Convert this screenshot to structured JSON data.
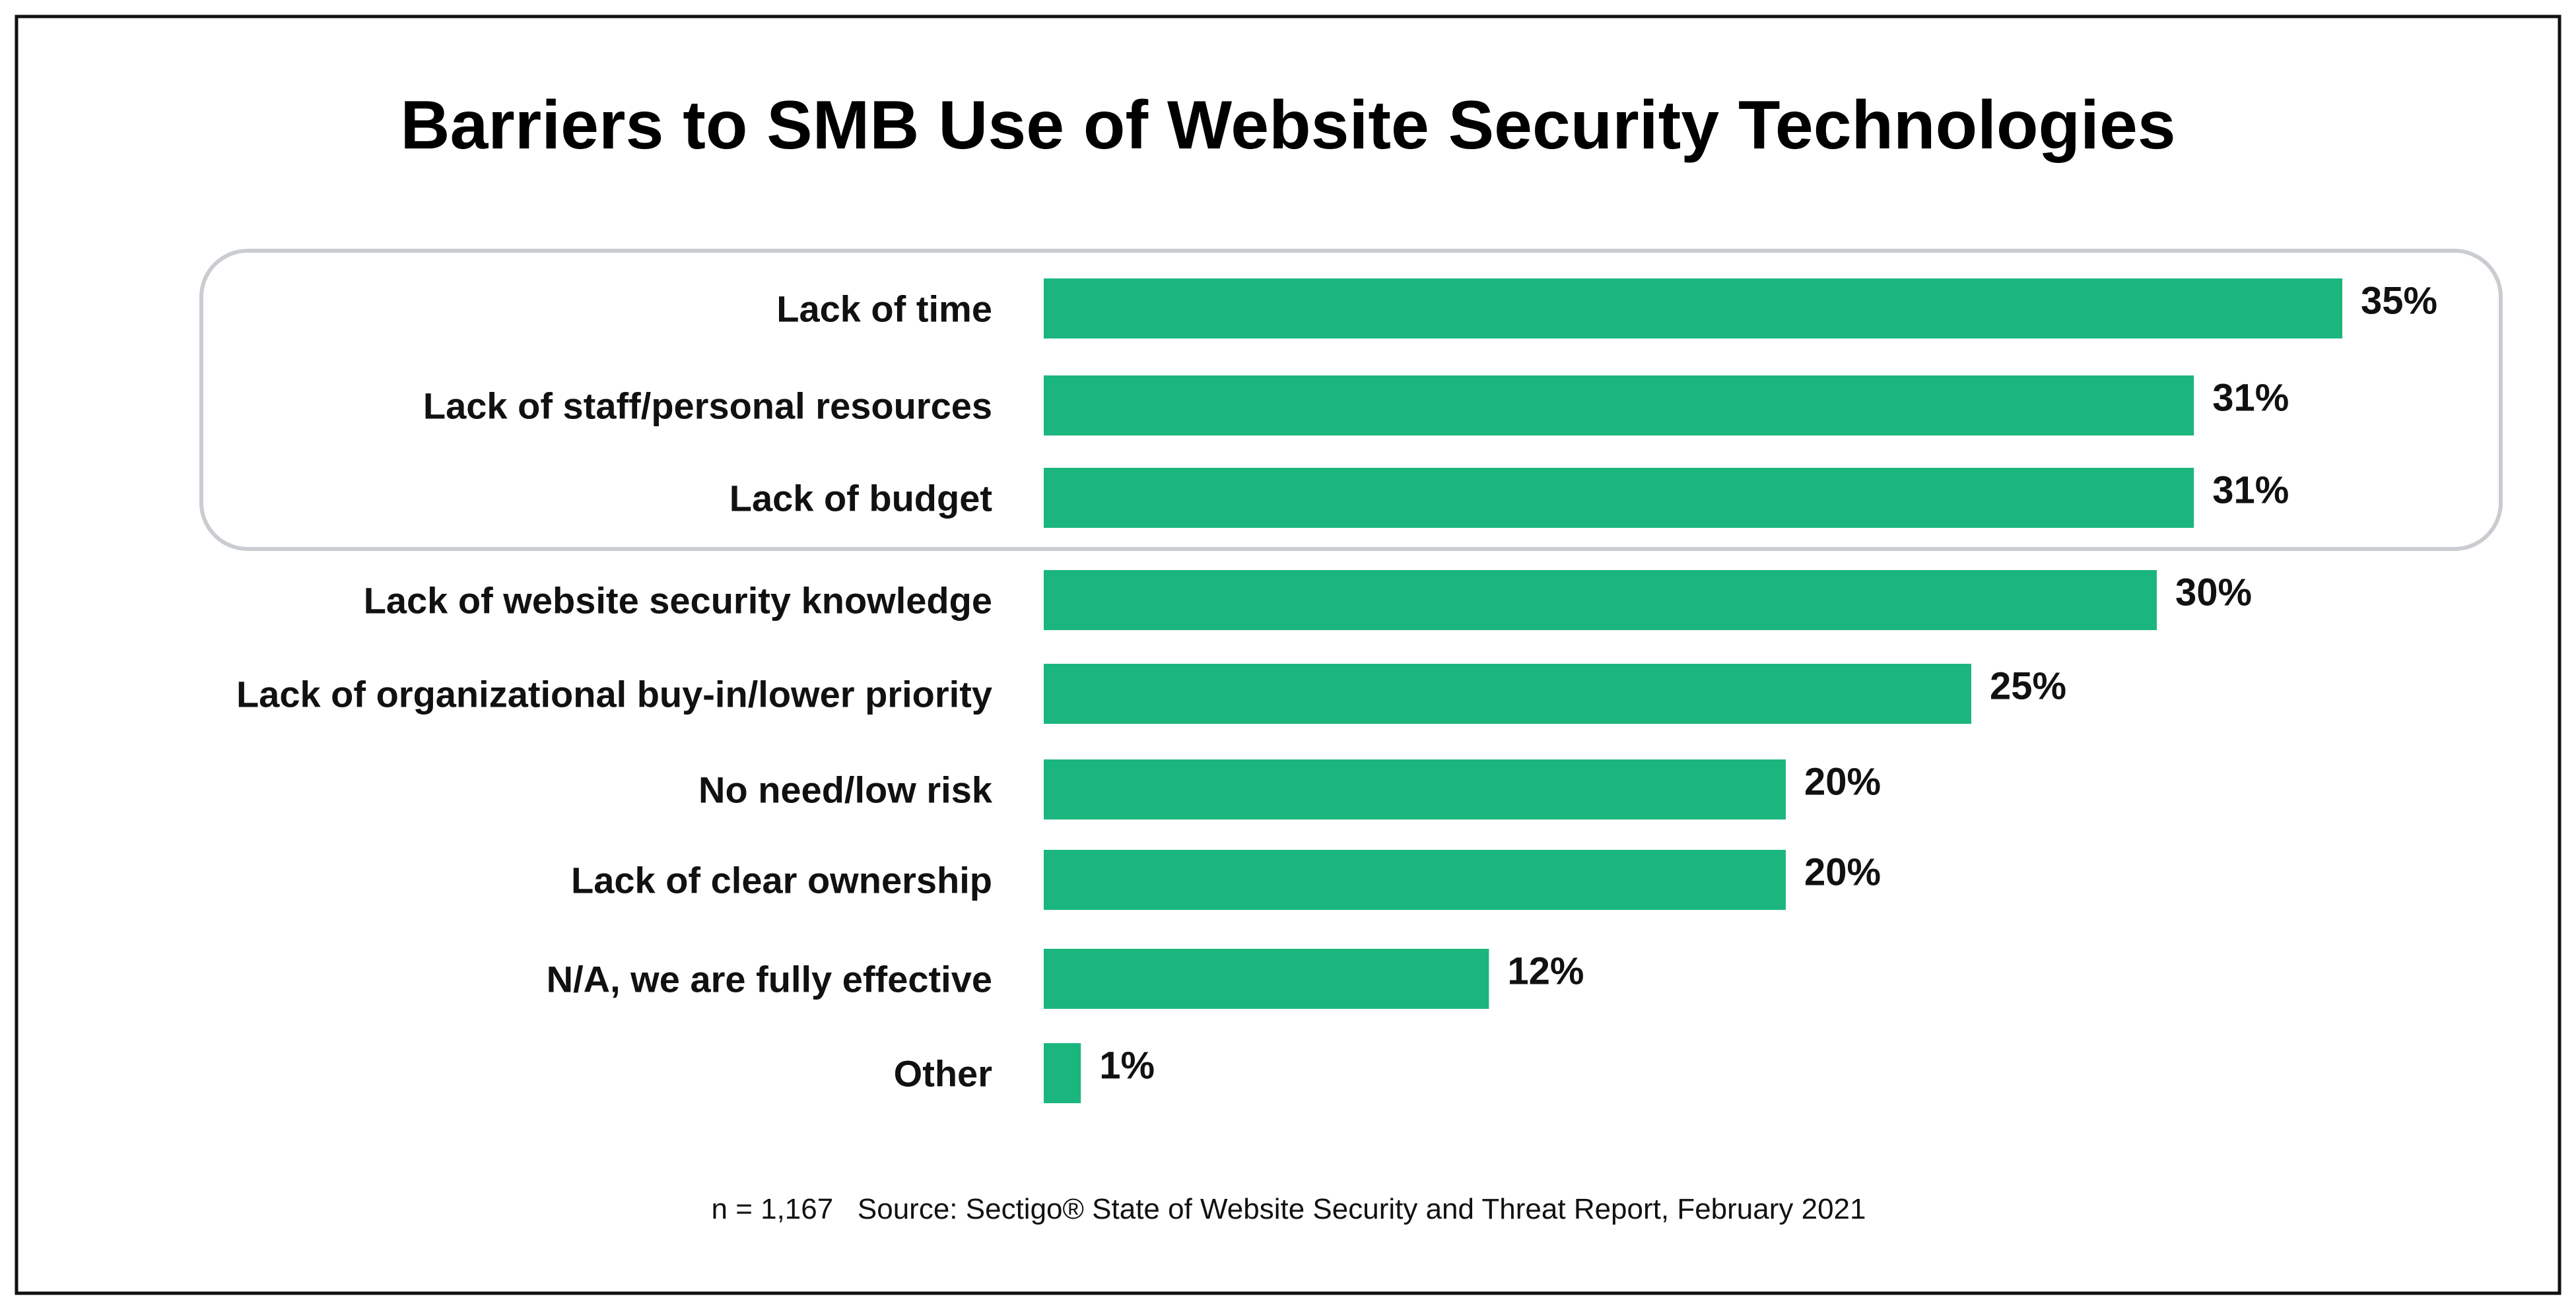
{
  "chart_data": {
    "type": "bar",
    "orientation": "horizontal",
    "title": "Barriers to SMB Use of Website Security Technologies",
    "categories": [
      "Lack of time",
      "Lack of staff/personal resources",
      "Lack of budget",
      "Lack of website security knowledge",
      "Lack of organizational buy-in/lower priority",
      "No need/low risk",
      "Lack of clear ownership",
      "N/A, we are fully effective",
      "Other"
    ],
    "values": [
      35,
      31,
      31,
      30,
      25,
      20,
      20,
      12,
      1
    ],
    "value_labels": [
      "35%",
      "31%",
      "31%",
      "30%",
      "25%",
      "20%",
      "20%",
      "12%",
      "1%"
    ],
    "highlighted_categories": [
      "Lack of time",
      "Lack of staff/personal resources",
      "Lack of budget"
    ],
    "xlabel": "",
    "ylabel": "",
    "unit": "%",
    "grid": false,
    "bar_color": "#1bb67e",
    "highlight_box_color": "#c9ccd0"
  },
  "footer": "n = 1,167   Source: Sectigo® State of Website Security and Threat Report, February 2021"
}
